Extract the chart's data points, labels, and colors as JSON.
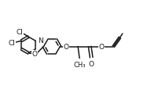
{
  "bg_color": "#ffffff",
  "line_color": "#1a1a1a",
  "lw": 1.1,
  "fs": 6.5,
  "fig_w": 2.11,
  "fig_h": 1.15,
  "dpi": 100,
  "xlim": [
    0,
    10.5
  ],
  "ylim": [
    0,
    5.5
  ]
}
